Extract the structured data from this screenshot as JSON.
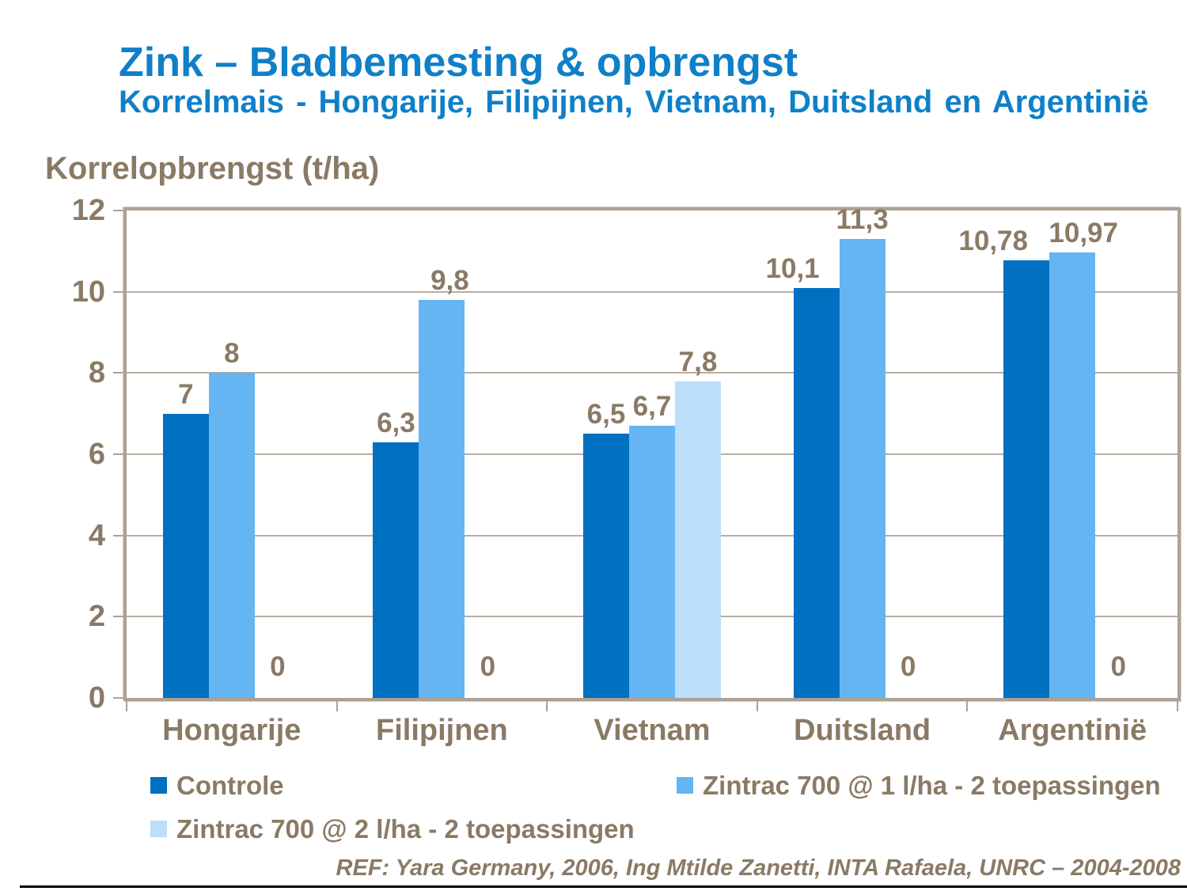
{
  "slide": {
    "title": "Zink – Bladbemesting & opbrengst",
    "subtitle": "Korrelmais - Hongarije, Filipijnen, Vietnam, Duitsland en Argentinië",
    "footer_ref": "REF: Yara Germany, 2006, Ing Mtilde Zanetti, INTA Rafaela, UNRC – 2004-2008"
  },
  "colors": {
    "heading_blue": "#0F80C8",
    "text_brown": "#8A7A65",
    "plot_border": "#ADA193",
    "gridline": "#B9AD9E",
    "bottom_rule": "#000000"
  },
  "chart_data": {
    "type": "bar",
    "title": "Zink – Bladbemesting & opbrengst",
    "subtitle": "Korrelmais - Hongarije, Filipijnen, Vietnam, Duitsland en Argentinië",
    "ylabel": "Korrelopbrengst (t/ha)",
    "xlabel": "",
    "ylim": [
      0,
      12
    ],
    "ytick_step": 2,
    "yticks": [
      0,
      2,
      4,
      6,
      8,
      10,
      12
    ],
    "grid": true,
    "legend_position": "bottom",
    "categories": [
      "Hongarije",
      "Filipijnen",
      "Vietnam",
      "Duitsland",
      "Argentinië"
    ],
    "series": [
      {
        "name": "Controle",
        "color": "#0070C0",
        "values": [
          7,
          6.3,
          6.5,
          10.1,
          10.78
        ],
        "labels": [
          "7",
          "6,3",
          "6,5",
          "10,1",
          "10,78"
        ]
      },
      {
        "name": "Zintrac 700 @ 1 l/ha - 2 toepassingen",
        "color": "#65B5F2",
        "values": [
          8,
          9.8,
          6.7,
          11.3,
          10.97
        ],
        "labels": [
          "8",
          "9,8",
          "6,7",
          "11,3",
          "10,97"
        ]
      },
      {
        "name": "Zintrac 700 @ 2 l/ha - 2 toepassingen",
        "color": "#BBDEFB",
        "values": [
          0,
          0,
          7.8,
          0,
          0
        ],
        "labels": [
          "0",
          "0",
          "7,8",
          "0",
          "0"
        ]
      }
    ]
  }
}
